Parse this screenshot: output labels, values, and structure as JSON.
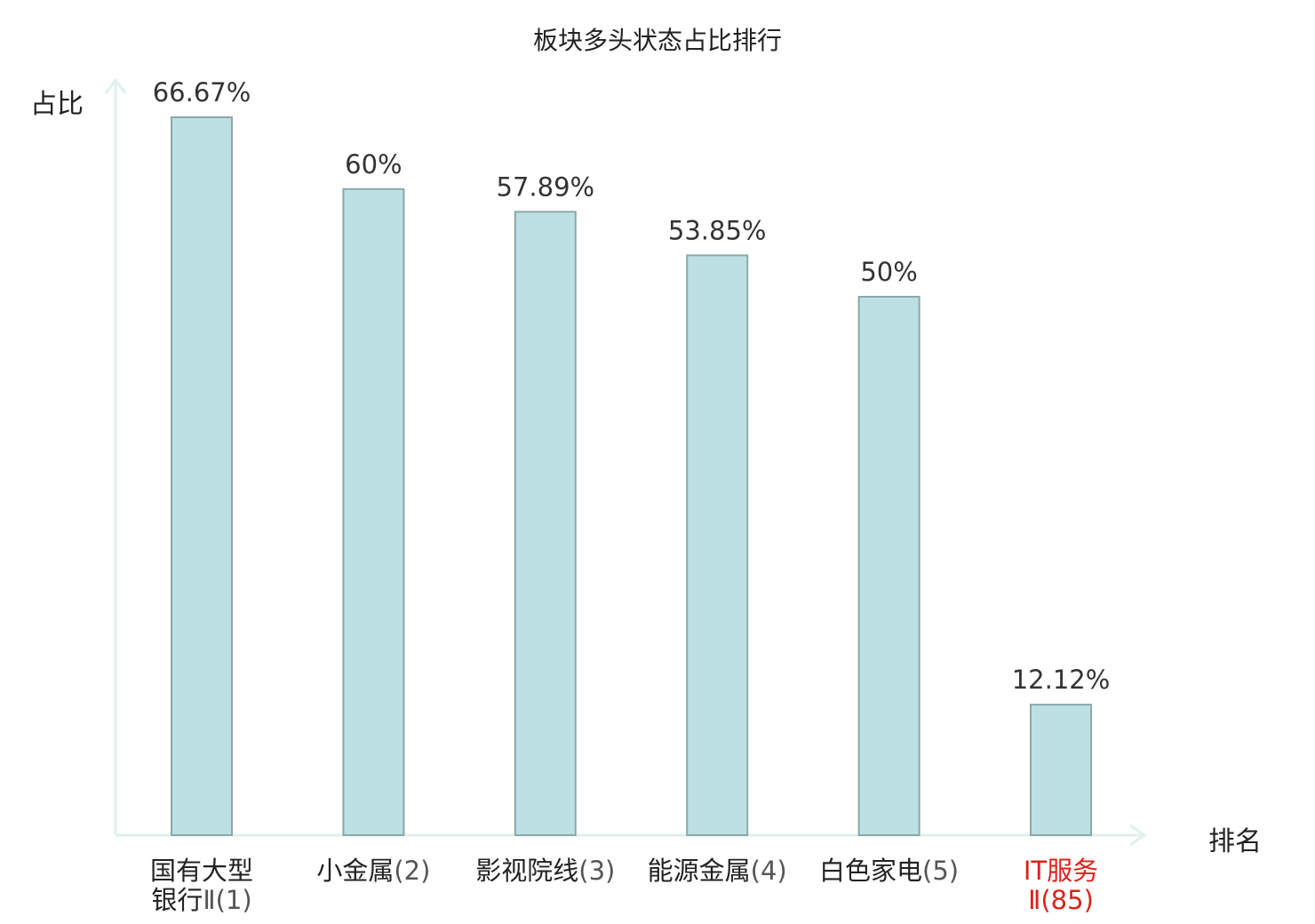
{
  "chart_data": {
    "type": "bar",
    "title": "板块多头状态占比排行",
    "ylabel": "占比",
    "xlabel": "排名",
    "ylim": [
      0,
      70
    ],
    "grid": false,
    "categories": [
      {
        "name": "国有大型银行Ⅱ",
        "rank": "(1)",
        "highlight": false
      },
      {
        "name": "小金属",
        "rank": "(2)",
        "highlight": false
      },
      {
        "name": "影视院线",
        "rank": "(3)",
        "highlight": false
      },
      {
        "name": "能源金属",
        "rank": "(4)",
        "highlight": false
      },
      {
        "name": "白色家电",
        "rank": "(5)",
        "highlight": false
      },
      {
        "name": "IT服务Ⅱ",
        "rank": "(85)",
        "highlight": true
      }
    ],
    "category_labels": [
      {
        "line1": "国有大型",
        "line2": "银行",
        "sub": "Ⅱ(1)"
      },
      {
        "line1": "小金属",
        "line2": "",
        "sub": "(2)"
      },
      {
        "line1": "影视院线",
        "line2": "",
        "sub": "(3)"
      },
      {
        "line1": "能源金属",
        "line2": "",
        "sub": "(4)"
      },
      {
        "line1": "白色家电",
        "line2": "",
        "sub": "(5)"
      },
      {
        "line1": "IT服务",
        "line2": "",
        "sub": "Ⅱ(85)"
      }
    ],
    "values": [
      66.67,
      60,
      57.89,
      53.85,
      50,
      12.12
    ],
    "value_labels": [
      "66.67%",
      "60%",
      "57.89%",
      "53.85%",
      "50%",
      "12.12%"
    ],
    "colors": {
      "bar_fill": "#bde0e3",
      "bar_stroke": "#8aa8aa",
      "axis": "#dff0ee",
      "highlight": "#e0201a"
    }
  }
}
